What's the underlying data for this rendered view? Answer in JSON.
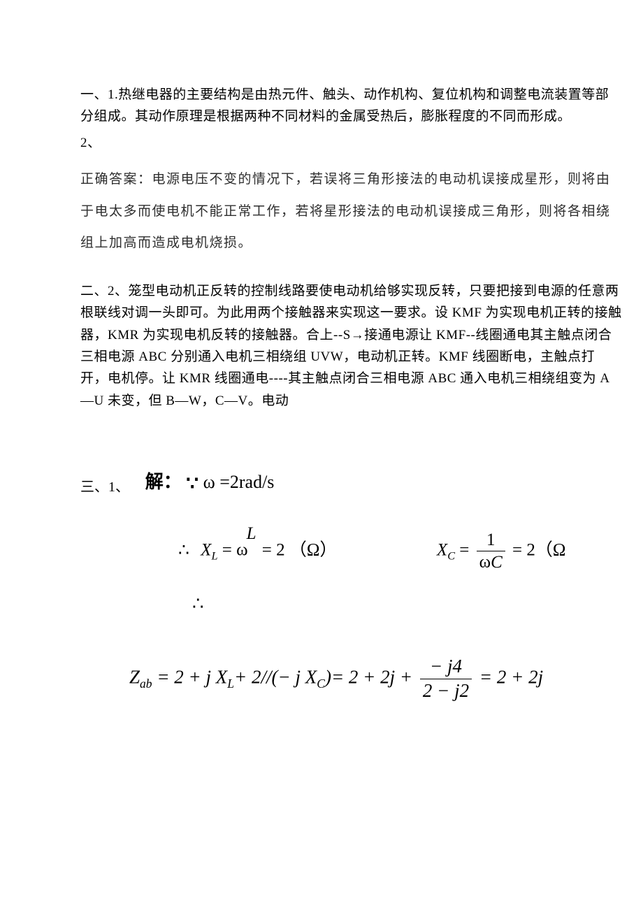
{
  "colors": {
    "background": "#ffffff",
    "text_main": "#000000",
    "text_answer": "#2e2e2e"
  },
  "typography": {
    "body_fontsize": 19,
    "body_lineheight": 1.65,
    "answer_lineheight": 2.4,
    "solution_label_fontsize": 26,
    "math_fontsize": 25,
    "math_large_fontsize": 27
  },
  "section1": {
    "q1": "一、1.热继电器的主要结构是由热元件、触头、动作机构、复位机构和调整电流装置等部分组成。其动作原理是根据两种不同材料的金属受热后，膨胀程度的不同而形成。",
    "q2_label": "2、",
    "answer_text": "正确答案：电源电压不变的情况下，若误将三角形接法的电动机误接成星形，则将由于电太多而使电机不能正常工作，若将星形接法的电动机误接成三角形，则将各相绕组上加高而造成电机烧损。"
  },
  "section2": {
    "text": "二、2、笼型电动机正反转的控制线路要使电动机给够实现反转，只要把接到电源的任意两根联线对调一头即可。为此用两个接触器来实现这一要求。设 KMF 为实现电机正转的接触器，KMR 为实现电机反转的接触器。合上--S→接通电源让 KMF--线圈通电其主触点闭合三相电源 ABC 分别通入电机三相绕组 UVW，电动机正转。KMF 线圈断电，主触点打开，电机停。让 KMR 线圈通电----其主触点闭合三相电源 ABC 通入电机三相绕组变为 A—U 未变，但 B—W，C—V。电动"
  },
  "section3": {
    "label": "三、1、",
    "solution_prefix": "解：",
    "because_symbol": "∵",
    "given": "ω =2rad/s",
    "therefore_symbol": "∴",
    "line1_xl": {
      "lhs": "X",
      "lhs_sub": "L",
      "eq": " = ",
      "rhs": "ω",
      "rhs_sup": "L",
      "val": " = 2 （Ω）"
    },
    "line1_xc": {
      "lhs": "X",
      "lhs_sub": "C",
      "eq": " = ",
      "frac_num": "1",
      "frac_den_omega": "ω",
      "frac_den_c": "C",
      "val": " = 2（Ω"
    },
    "line3": {
      "z_lhs": "Z",
      "z_sub": "ab",
      "eq1": " = 2 + ",
      "j1": "j",
      "xl": " X",
      "xl_sub": "L",
      "plus1": "+ 2//(− ",
      "j2": "j",
      "xc": " X",
      "xc_sub": "C",
      "close": ")= 2 + 2",
      "j3": "j",
      "plus2": " + ",
      "frac_num_minus": "− ",
      "frac_num_j": "j",
      "frac_num_4": "4",
      "frac_den_2": "2 − ",
      "frac_den_j": "j",
      "frac_den_2b": "2",
      "eq2": " = 2 + 2",
      "j4": "j"
    }
  }
}
